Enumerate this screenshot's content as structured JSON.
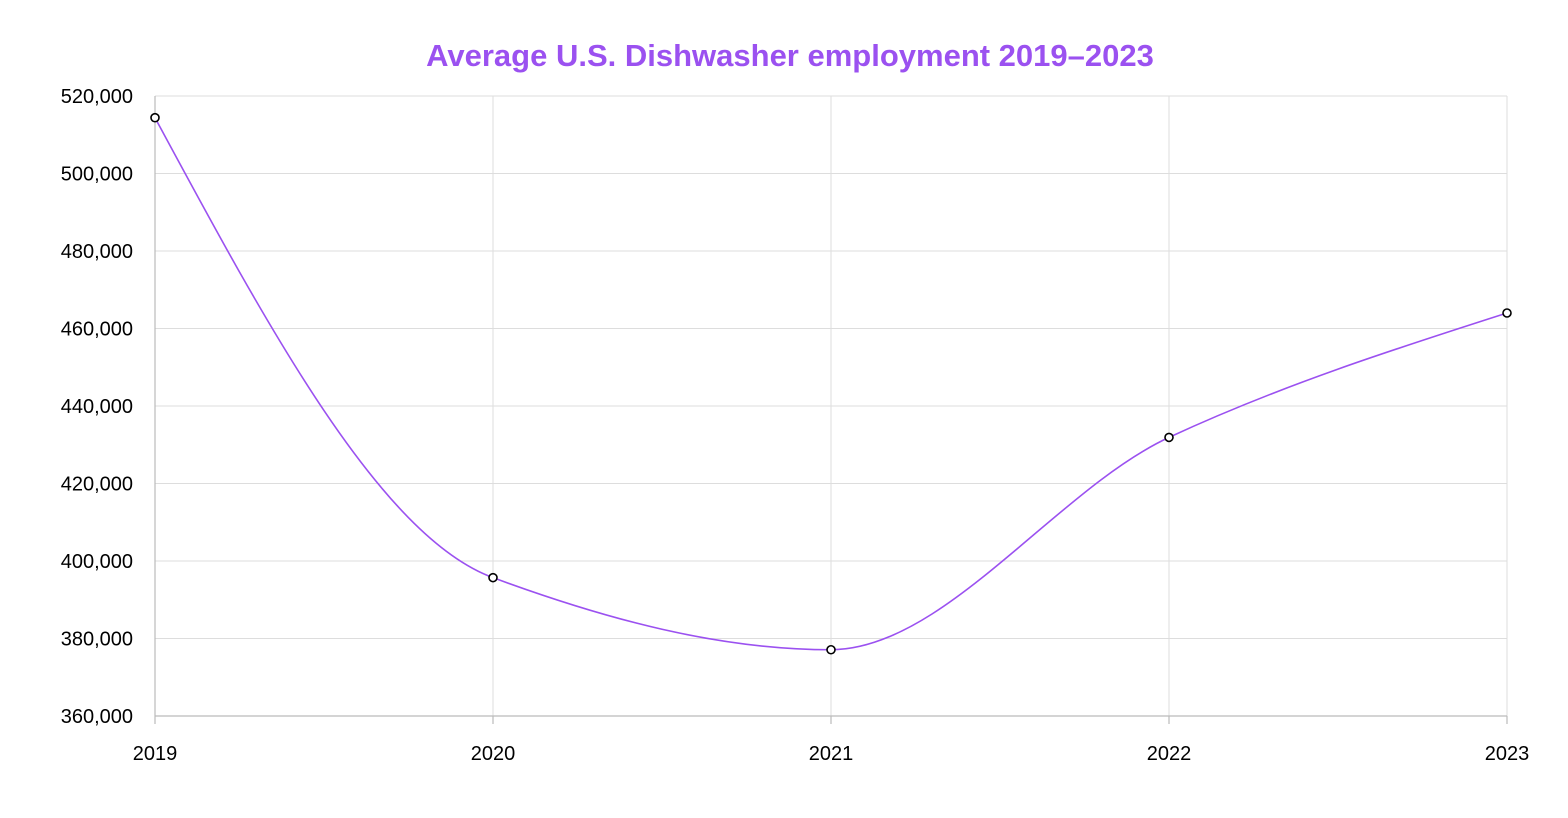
{
  "chart_data": {
    "type": "line",
    "title": "Average U.S. Dishwasher employment 2019–2023",
    "xlabel": "",
    "ylabel": "",
    "categories": [
      "2019",
      "2020",
      "2021",
      "2022",
      "2023"
    ],
    "series": [
      {
        "name": "",
        "values": [
          514400,
          395700,
          377100,
          431900,
          464000
        ]
      }
    ],
    "ylim": [
      360000,
      520000
    ],
    "y_ticks": [
      360000,
      380000,
      400000,
      420000,
      440000,
      460000,
      480000,
      500000,
      520000
    ],
    "y_tick_labels": [
      "360,000",
      "380,000",
      "400,000",
      "420,000",
      "440,000",
      "460,000",
      "480,000",
      "500,000",
      "520,000"
    ],
    "grid": true,
    "curve": "smooth",
    "legend": "none",
    "colors": {
      "title": "#9b51f0",
      "line": "#9b51f0",
      "marker_stroke": "#000000",
      "marker_fill": "#ffffff",
      "grid": "#dddddd"
    }
  }
}
